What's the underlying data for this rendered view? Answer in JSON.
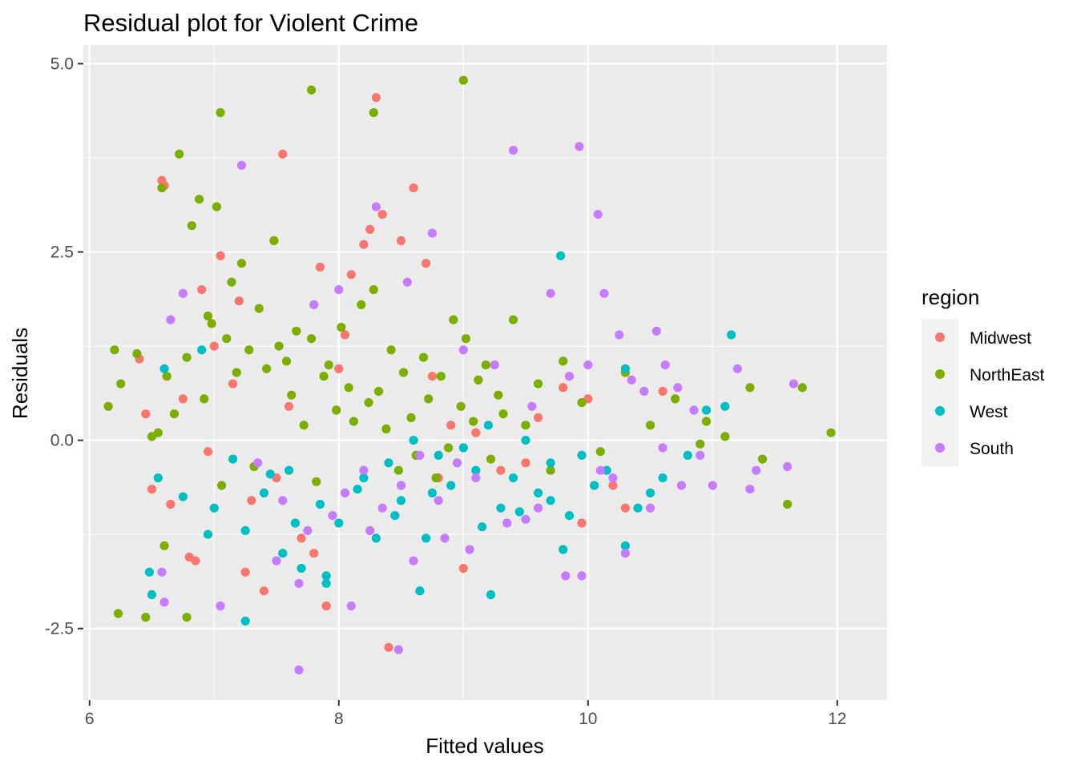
{
  "chart_data": {
    "type": "scatter",
    "title": "Residual plot for Violent Crime",
    "xlabel": "Fitted values",
    "ylabel": "Residuals",
    "xlim": [
      5.95,
      12.4
    ],
    "ylim": [
      -3.45,
      5.25
    ],
    "x_ticks": [
      6,
      8,
      10,
      12
    ],
    "x_tick_labels": [
      "6",
      "8",
      "10",
      "12"
    ],
    "y_ticks": [
      -2.5,
      0,
      2.5,
      5
    ],
    "y_tick_labels": [
      "-2.5",
      "0.0",
      "2.5",
      "5.0"
    ],
    "grid": true,
    "legend": {
      "title": "region",
      "placement": "right"
    },
    "series": [
      {
        "name": "Midwest",
        "color": "#F8766D",
        "x": [
          6.58,
          6.6,
          6.4,
          6.75,
          6.9,
          7.0,
          7.05,
          7.2,
          7.55,
          7.85,
          8.3,
          8.25,
          8.5,
          8.6,
          8.7,
          8.75,
          8.2,
          8.1,
          8.0,
          7.6,
          7.3,
          6.95,
          6.8,
          6.65,
          6.5,
          6.45,
          7.8,
          8.9,
          9.1,
          9.5,
          9.8,
          10.2,
          10.6,
          10.3,
          10.0,
          9.95,
          9.0,
          8.4,
          7.7,
          7.25,
          7.4,
          7.9,
          8.8,
          9.3,
          9.6,
          8.05,
          7.15,
          6.85,
          7.5,
          8.35
        ],
        "y": [
          3.45,
          3.38,
          1.08,
          0.55,
          2.0,
          1.25,
          2.45,
          1.85,
          3.8,
          2.3,
          4.55,
          2.8,
          2.65,
          3.35,
          2.35,
          0.85,
          2.6,
          2.2,
          0.95,
          0.45,
          -0.8,
          -0.15,
          -1.55,
          -0.85,
          -0.65,
          0.35,
          -1.5,
          0.2,
          0.1,
          -0.3,
          0.7,
          -0.6,
          0.65,
          -0.9,
          0.55,
          -1.1,
          -1.7,
          -2.75,
          -1.3,
          -1.75,
          -2.0,
          -2.2,
          -0.5,
          -0.4,
          0.3,
          1.4,
          0.75,
          -1.6,
          -0.5,
          3.0
        ]
      },
      {
        "name": "NorthEast",
        "color": "#7CAE00",
        "x": [
          6.15,
          6.2,
          6.25,
          6.38,
          6.45,
          6.55,
          6.58,
          6.62,
          6.68,
          6.72,
          6.78,
          6.82,
          6.88,
          6.92,
          6.95,
          6.98,
          7.02,
          7.06,
          7.1,
          7.14,
          7.18,
          7.22,
          7.28,
          7.32,
          7.36,
          7.42,
          7.48,
          7.52,
          7.58,
          7.62,
          7.66,
          7.72,
          7.78,
          7.82,
          7.88,
          7.92,
          7.98,
          8.02,
          8.08,
          8.12,
          8.18,
          8.24,
          8.28,
          8.32,
          8.38,
          8.42,
          8.48,
          8.52,
          8.58,
          8.62,
          8.68,
          8.72,
          8.78,
          8.82,
          8.88,
          8.92,
          8.98,
          9.02,
          9.08,
          9.12,
          9.18,
          9.22,
          9.28,
          9.32,
          9.4,
          9.5,
          9.6,
          9.7,
          9.8,
          9.95,
          10.1,
          10.3,
          10.5,
          10.7,
          10.9,
          11.1,
          11.3,
          11.6,
          11.72,
          11.95,
          7.05,
          7.78,
          9.0,
          8.28,
          6.78,
          6.23,
          6.5,
          11.4,
          10.95,
          6.6
        ],
        "y": [
          0.45,
          1.2,
          0.75,
          1.15,
          -2.35,
          0.1,
          3.35,
          0.85,
          0.35,
          3.8,
          1.1,
          2.85,
          3.2,
          0.55,
          1.65,
          1.55,
          3.1,
          -0.6,
          1.35,
          2.1,
          0.9,
          2.35,
          1.2,
          -0.35,
          1.75,
          0.95,
          2.65,
          1.25,
          1.05,
          0.6,
          1.45,
          0.2,
          1.35,
          -0.55,
          0.85,
          1.0,
          0.4,
          1.5,
          0.7,
          0.25,
          1.8,
          0.5,
          2.0,
          0.65,
          0.15,
          1.2,
          -0.4,
          0.9,
          0.3,
          -0.2,
          1.1,
          0.55,
          -0.5,
          0.85,
          -0.1,
          1.6,
          0.45,
          1.35,
          0.25,
          0.8,
          1.0,
          -0.25,
          0.6,
          0.35,
          1.6,
          0.2,
          0.75,
          -0.4,
          1.05,
          0.5,
          -0.15,
          0.9,
          0.2,
          0.55,
          -0.05,
          0.05,
          0.7,
          -0.85,
          0.7,
          0.1,
          4.35,
          4.65,
          4.78,
          4.35,
          -2.35,
          -2.3,
          0.05,
          -0.25,
          0.25,
          -1.4
        ]
      },
      {
        "name": "West",
        "color": "#00BFC4",
        "x": [
          6.6,
          6.9,
          7.0,
          7.25,
          7.4,
          7.6,
          7.7,
          7.9,
          8.0,
          8.2,
          8.4,
          8.5,
          8.6,
          8.7,
          8.8,
          8.9,
          9.0,
          9.1,
          9.2,
          9.3,
          9.4,
          9.5,
          9.6,
          9.7,
          9.78,
          9.85,
          9.95,
          10.05,
          10.15,
          10.3,
          10.4,
          10.5,
          10.6,
          10.8,
          10.95,
          11.1,
          11.15,
          6.48,
          6.5,
          7.25,
          7.55,
          7.9,
          8.3,
          8.65,
          9.22,
          9.8,
          10.3,
          9.7,
          9.45,
          9.15,
          8.75,
          8.45,
          8.15,
          7.85,
          7.65,
          7.45,
          7.15,
          6.95,
          6.75,
          6.55
        ],
        "y": [
          0.95,
          1.2,
          -0.9,
          -2.4,
          -0.7,
          -0.4,
          -1.7,
          -1.8,
          -1.1,
          -0.5,
          -0.3,
          -0.8,
          0.0,
          -1.3,
          -0.2,
          -0.6,
          -0.1,
          -0.4,
          0.2,
          -0.9,
          -0.5,
          0.0,
          -0.7,
          -0.3,
          2.45,
          -1.0,
          -0.2,
          -0.6,
          -0.4,
          0.95,
          -0.9,
          -0.7,
          -0.5,
          -0.2,
          0.4,
          0.45,
          1.4,
          -1.75,
          -2.05,
          -1.2,
          -1.5,
          -1.9,
          -1.3,
          -2.0,
          -2.05,
          -1.45,
          -1.4,
          -0.8,
          -0.95,
          -1.15,
          -0.7,
          -1.0,
          -0.65,
          -0.85,
          -1.1,
          -0.45,
          -0.25,
          -1.25,
          -0.75,
          -0.5
        ]
      },
      {
        "name": "South",
        "color": "#C77CFF",
        "x": [
          6.65,
          6.75,
          7.22,
          7.68,
          7.8,
          8.0,
          8.3,
          8.55,
          8.75,
          9.0,
          9.25,
          9.4,
          9.55,
          9.7,
          9.85,
          9.93,
          10.0,
          10.08,
          10.13,
          10.25,
          10.35,
          10.45,
          10.55,
          10.62,
          10.72,
          10.85,
          11.0,
          11.2,
          11.3,
          11.35,
          11.6,
          11.65,
          9.1,
          8.95,
          8.8,
          8.65,
          8.5,
          8.35,
          8.2,
          8.05,
          7.95,
          7.75,
          7.55,
          7.35,
          6.58,
          6.6,
          7.05,
          8.1,
          8.48,
          9.82,
          9.95,
          10.3,
          10.9,
          10.6,
          10.1,
          9.6,
          9.35,
          8.85,
          8.6,
          7.68,
          7.5,
          8.25,
          9.05,
          9.5,
          10.2,
          10.5,
          10.75
        ],
        "y": [
          1.6,
          1.95,
          3.65,
          -3.05,
          1.8,
          2.0,
          3.1,
          2.1,
          2.75,
          1.2,
          1.0,
          3.85,
          0.45,
          1.95,
          0.85,
          3.9,
          1.0,
          3.0,
          1.95,
          1.4,
          0.8,
          0.65,
          1.45,
          1.0,
          0.7,
          0.4,
          -0.6,
          0.95,
          -0.65,
          -0.4,
          -0.35,
          0.75,
          -0.5,
          -0.3,
          -0.8,
          -0.2,
          -0.6,
          -0.9,
          -0.4,
          -0.7,
          -1.0,
          -1.2,
          -0.8,
          -0.3,
          -1.75,
          -2.15,
          -2.2,
          -2.2,
          -2.78,
          -1.8,
          -1.8,
          -1.5,
          -0.2,
          -0.1,
          -0.4,
          -0.9,
          -1.1,
          -1.3,
          -1.6,
          -1.9,
          -1.6,
          -1.2,
          -1.45,
          -1.05,
          -0.5,
          -0.9,
          -0.6
        ]
      }
    ]
  }
}
